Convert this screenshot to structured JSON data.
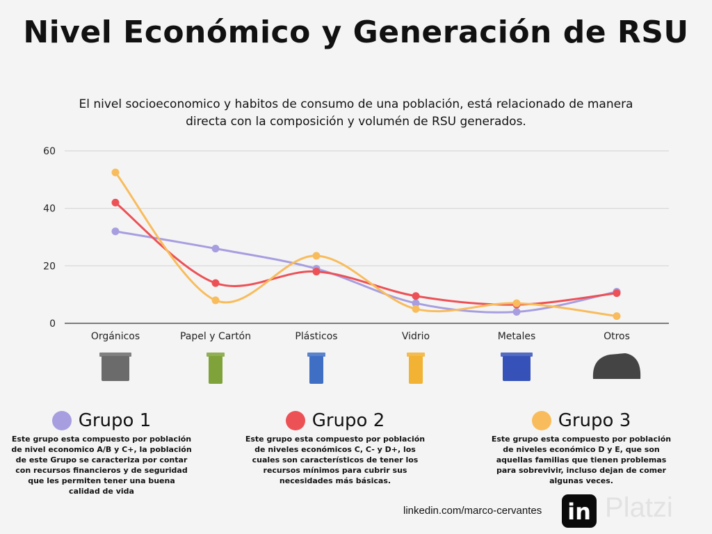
{
  "header": {
    "title": "Nivel Económico y Generación de RSU",
    "subtitle": "El nivel socioeconomico y habitos de consumo de una población, está relacionado de manera directa con la composición y volumén de RSU generados."
  },
  "chart_data": {
    "type": "line",
    "title": "",
    "categories": [
      "Orgánicos",
      "Papel y Cartón",
      "Plásticos",
      "Vidrio",
      "Metales",
      "Otros"
    ],
    "ylim": [
      0,
      60
    ],
    "yticks": [
      0,
      20,
      40,
      60
    ],
    "grid": true,
    "smooth": true,
    "series": [
      {
        "name": "Grupo 1",
        "color": "#a79ee0",
        "values": [
          32,
          26,
          19,
          7,
          4,
          11
        ]
      },
      {
        "name": "Grupo 2",
        "color": "#ec5156",
        "values": [
          42,
          14,
          18,
          9.5,
          6.5,
          10.5
        ]
      },
      {
        "name": "Grupo 3",
        "color": "#f8bc5c",
        "values": [
          52.5,
          8,
          23.5,
          5,
          7,
          2.5
        ]
      }
    ],
    "category_icons": [
      "organic-bin-icon",
      "paper-bin-icon",
      "plastic-bin-icon",
      "glass-bin-icon",
      "metal-bin-icon",
      "trash-bag-icon"
    ],
    "bin_colors": [
      "#6b6b6b",
      "#7fa33a",
      "#3f6fc4",
      "#f2b233",
      "#3652b8",
      "#444444"
    ]
  },
  "groups": [
    {
      "name": "Grupo 1",
      "color": "#a79ee0",
      "desc": "Este grupo esta compuesto por población de nivel economico A/B y C+, la población de este Grupo se caracteriza por contar con recursos financieros y de seguridad que les permiten tener una buena calidad de vida"
    },
    {
      "name": "Grupo 2",
      "color": "#ec5156",
      "desc": "Este grupo esta compuesto por población de niveles económicos C, C- y D+, los cuales son característicos de tener los recursos mínimos para cubrir sus necesidades más básicas."
    },
    {
      "name": "Grupo 3",
      "color": "#f8bc5c",
      "desc": "Este grupo esta compuesto por población de niveles económico D y E, que son aquellas familias que tienen problemas para sobrevivir, incluso dejan de comer algunas veces."
    }
  ],
  "footer": {
    "link": "linkedin.com/marco-cervantes",
    "linkedin_logo": "in",
    "watermark": "Platzi"
  }
}
